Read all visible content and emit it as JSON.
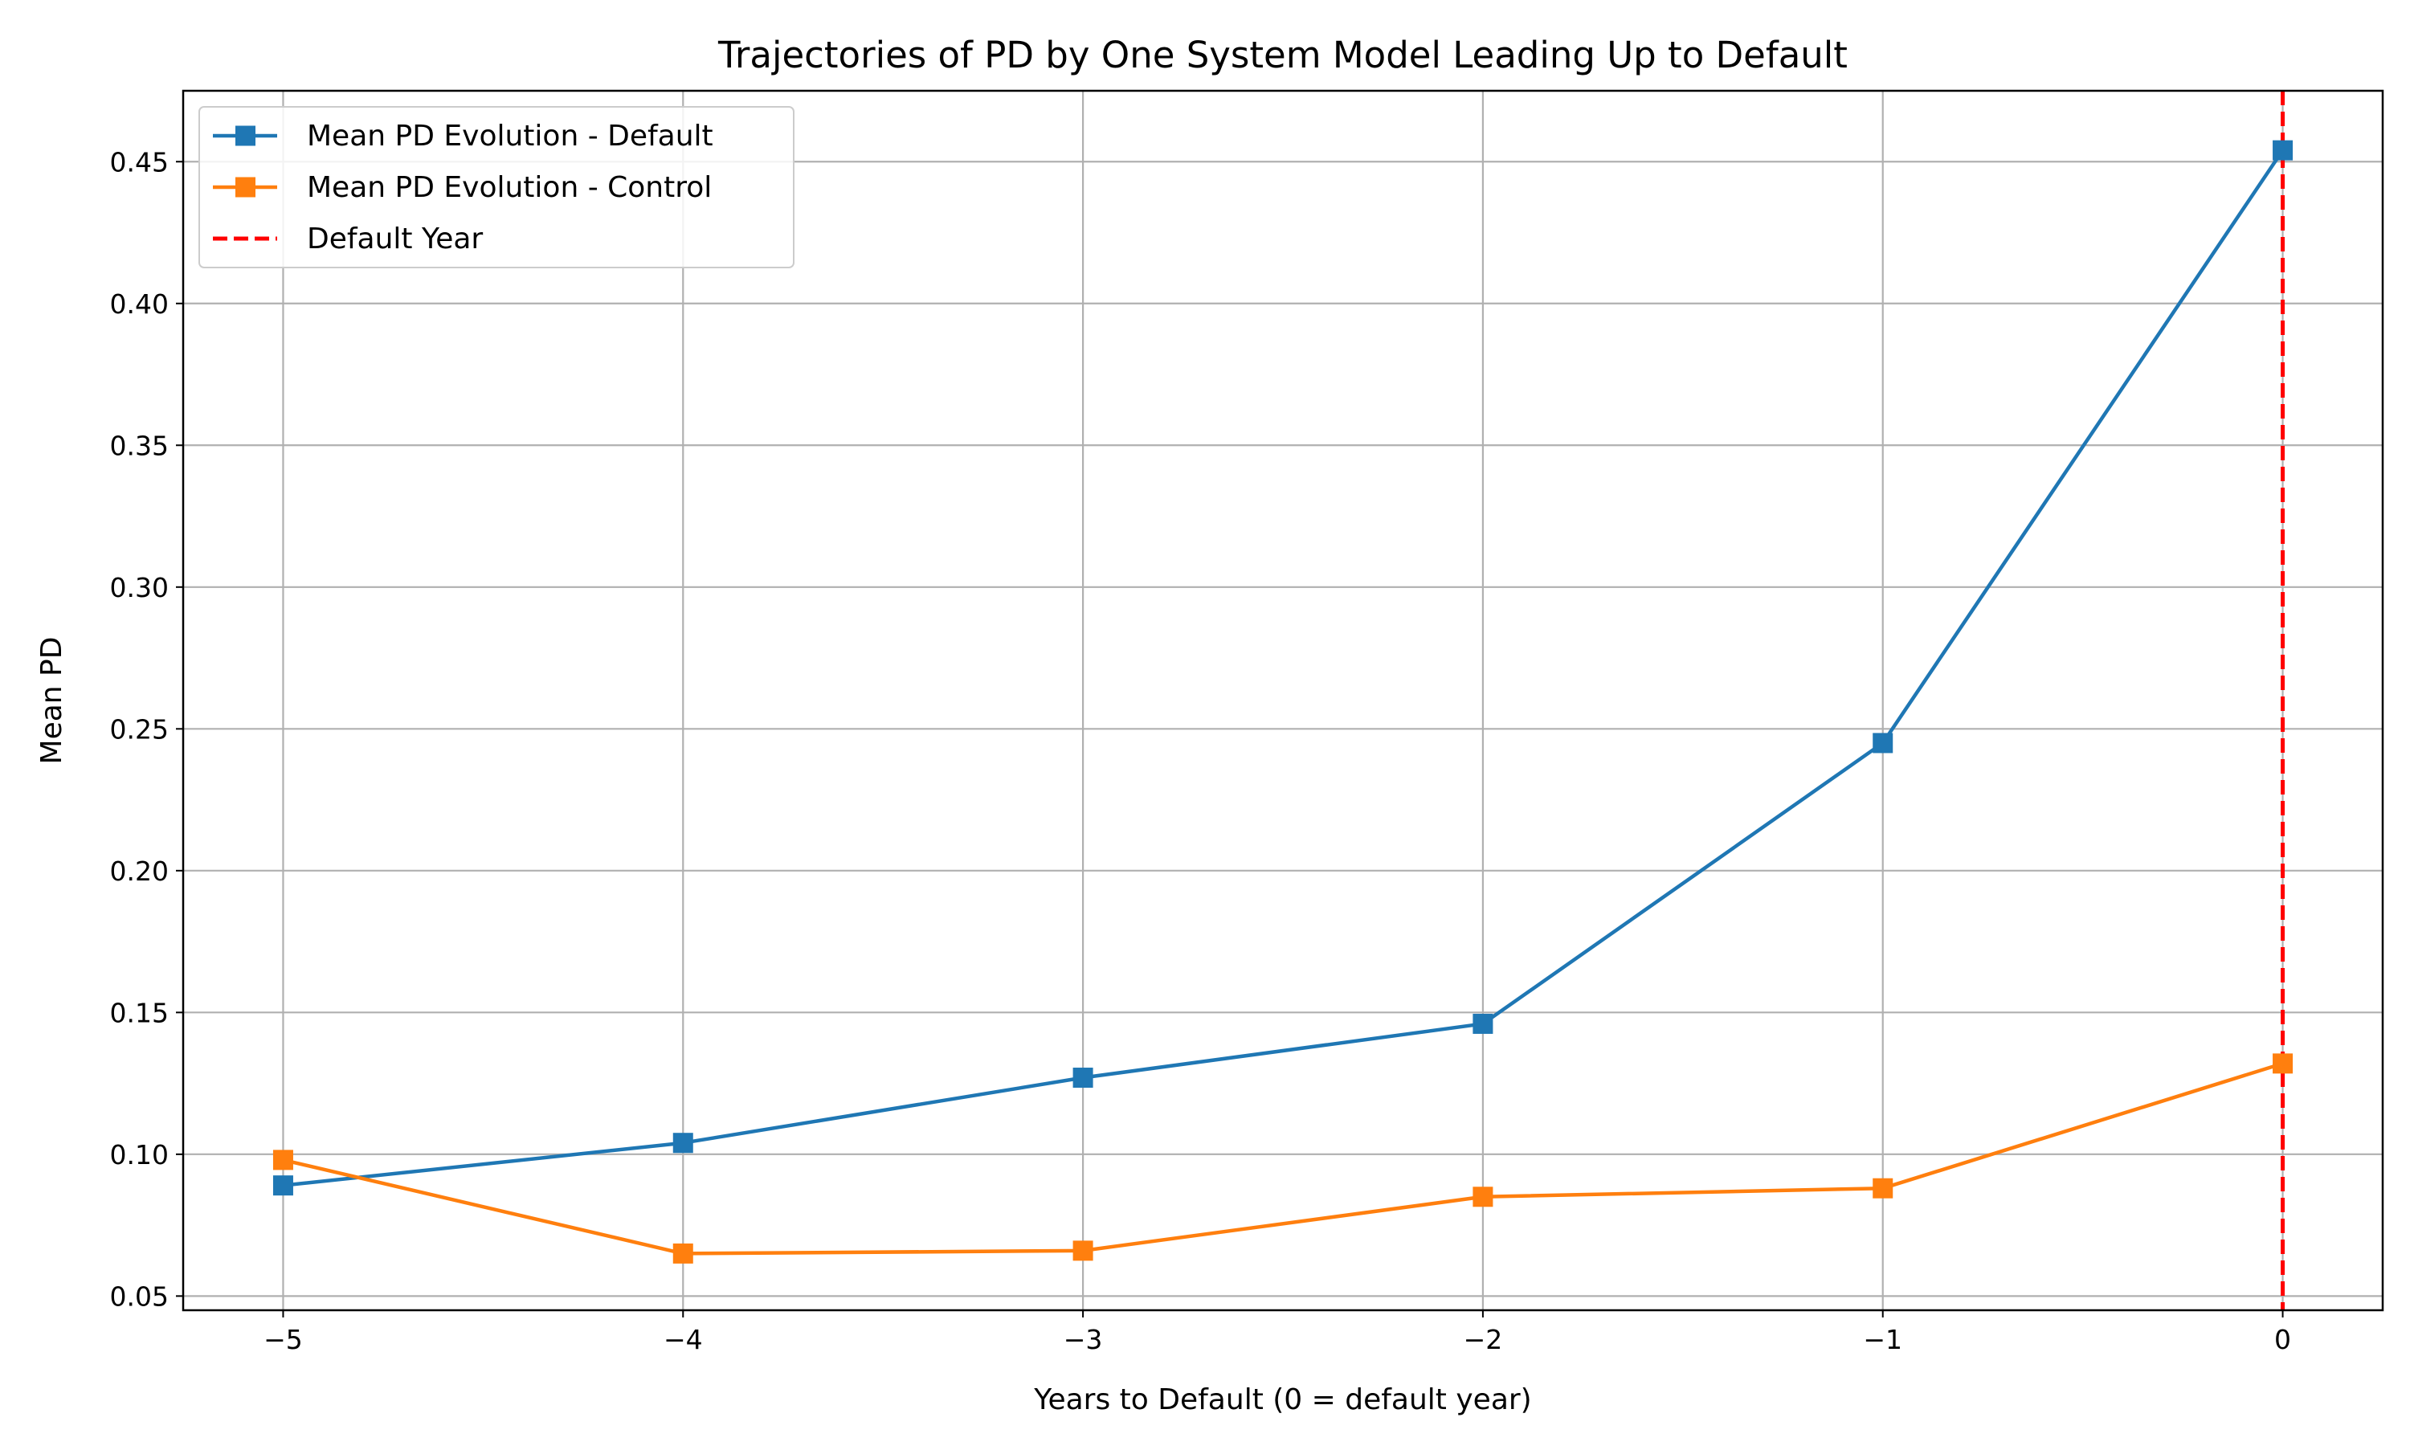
{
  "chart_data": {
    "type": "line",
    "title": "Trajectories of PD by One System Model Leading Up to Default",
    "xlabel": "Years to Default (0 = default year)",
    "ylabel": "Mean PD",
    "x": [
      -5,
      -4,
      -3,
      -2,
      -1,
      0
    ],
    "x_tick_labels": [
      "−5",
      "−4",
      "−3",
      "−2",
      "−1",
      "0"
    ],
    "y_ticks": [
      0.05,
      0.1,
      0.15,
      0.2,
      0.25,
      0.3,
      0.35,
      0.4,
      0.45
    ],
    "y_tick_labels": [
      "0.05",
      "0.10",
      "0.15",
      "0.20",
      "0.25",
      "0.30",
      "0.35",
      "0.40",
      "0.45"
    ],
    "xlim": [
      -5.25,
      0.25
    ],
    "ylim": [
      0.045,
      0.475
    ],
    "grid": true,
    "legend_position": "upper-left",
    "series": [
      {
        "name": "Mean PD Evolution - Default",
        "color": "#1f77b4",
        "marker": "square",
        "values": [
          0.089,
          0.104,
          0.127,
          0.146,
          0.245,
          0.454
        ]
      },
      {
        "name": "Mean PD Evolution - Control",
        "color": "#ff7f0e",
        "marker": "square",
        "values": [
          0.098,
          0.065,
          0.066,
          0.085,
          0.088,
          0.132
        ]
      }
    ],
    "reference_line": {
      "name": "Default Year",
      "x": 0,
      "color": "#ff0000",
      "style": "dashed"
    }
  }
}
